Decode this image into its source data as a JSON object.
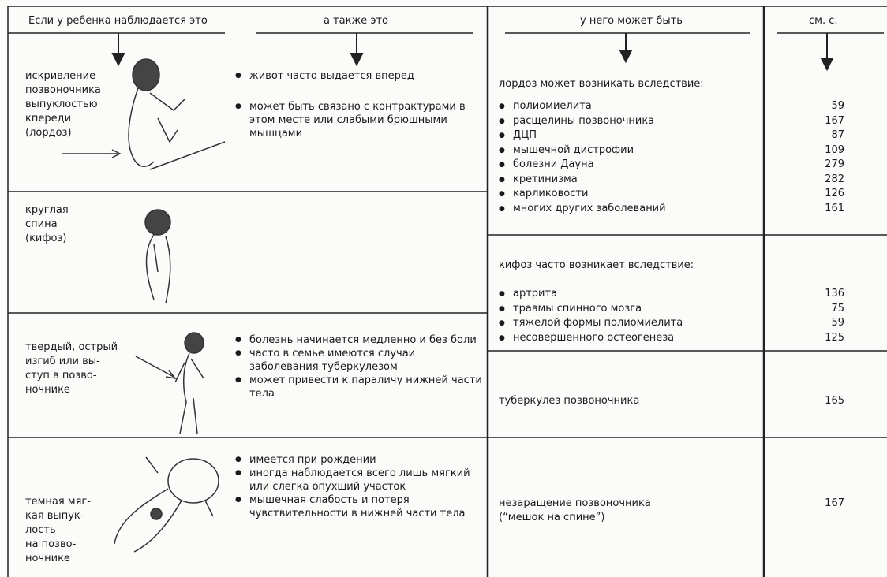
{
  "header": {
    "col1": "Если у ребенка наблюдается это",
    "col2": "а также это",
    "col3": "у него может быть",
    "col4": "см. с."
  },
  "signs": [
    {
      "lines": [
        "искривление",
        "позвоночника",
        "выпуклостью",
        "кпереди",
        "(лордоз)"
      ],
      "notes": [
        "живот часто выдается вперед",
        "может быть связано с контрактурами в этом месте или слабыми брюшными мышцами"
      ]
    },
    {
      "lines": [
        "круглая",
        "спина",
        "(кифоз)"
      ],
      "notes": []
    },
    {
      "lines": [
        "твердый, острый",
        "изгиб или вы-",
        "ступ в позво-",
        "ночнике"
      ],
      "notes": [
        "болезнь начинается медленно и без боли",
        "часто в семье имеются случаи заболевания туберкулезом",
        "может привести к параличу нижней части тела"
      ]
    },
    {
      "lines": [
        "темная мяг-",
        "кая выпук-",
        "лость",
        "на позво-",
        "ночнике"
      ],
      "notes": [
        "имеется при рождении",
        "иногда наблюдается всего лишь мягкий или слегка опухший участок",
        "мышечная слабость и потеря чувствительности в нижней части тела"
      ]
    }
  ],
  "causes": [
    {
      "title": "лордоз может возникать вследствие:",
      "items": [
        {
          "name": "полиомиелита",
          "page": 59
        },
        {
          "name": "расщелины позвоночника",
          "page": 167
        },
        {
          "name": "ДЦП",
          "page": 87
        },
        {
          "name": "мышечной дистрофии",
          "page": 109
        },
        {
          "name": "болезни Дауна",
          "page": 279
        },
        {
          "name": "кретинизма",
          "page": 282
        },
        {
          "name": "карликовости",
          "page": 126
        },
        {
          "name": "многих других заболеваний",
          "page": 161
        }
      ]
    },
    {
      "title": "кифоз часто возникает вследствие:",
      "items": [
        {
          "name": "артрита",
          "page": 136
        },
        {
          "name": "травмы спинного мозга",
          "page": 75
        },
        {
          "name": "тяжелой формы полиомиелита",
          "page": 59
        },
        {
          "name": "несовершенного остеогенеза",
          "page": 125
        }
      ]
    },
    {
      "lines": [
        "туберкулез позвоночника"
      ],
      "page": 165
    },
    {
      "lines": [
        "незаращение позвоночника",
        "(“мешок на спине”)"
      ],
      "page": 167
    }
  ]
}
